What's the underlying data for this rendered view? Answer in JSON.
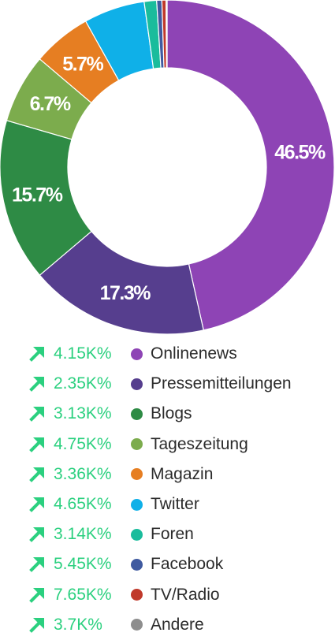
{
  "chart_data": {
    "type": "pie",
    "donut": true,
    "show_labels_min": 5,
    "title": "",
    "slices": [
      {
        "name": "Onlinenews",
        "value": 46.5,
        "label": "46.5%",
        "color": "#8e44b5",
        "trend": "4.15K%"
      },
      {
        "name": "Pressemitteilungen",
        "value": 17.3,
        "label": "17.3%",
        "color": "#563e8e",
        "trend": "2.35K%"
      },
      {
        "name": "Blogs",
        "value": 15.7,
        "label": "15.7%",
        "color": "#2e8b45",
        "trend": "3.13K%"
      },
      {
        "name": "Tageszeitung",
        "value": 6.7,
        "label": "6.7%",
        "color": "#7cac4d",
        "trend": "4.75K%"
      },
      {
        "name": "Magazin",
        "value": 5.7,
        "label": "5.7%",
        "color": "#e67e22",
        "trend": "3.36K%"
      },
      {
        "name": "Twitter",
        "value": 5.9,
        "label": "",
        "color": "#0fb0e8",
        "trend": "4.65K%"
      },
      {
        "name": "Foren",
        "value": 1.2,
        "label": "",
        "color": "#1abc9c",
        "trend": "3.14K%"
      },
      {
        "name": "Facebook",
        "value": 0.5,
        "label": "",
        "color": "#3f5aa0",
        "trend": "5.45K%"
      },
      {
        "name": "TV/Radio",
        "value": 0.4,
        "label": "",
        "color": "#c0392b",
        "trend": "7.65K%"
      },
      {
        "name": "Andere",
        "value": 0.1,
        "label": "",
        "color": "#8e8e8e",
        "trend": "3.7K%"
      }
    ]
  },
  "colors": {
    "trend": "#2bd07f",
    "legend_text": "#2b2b2b"
  },
  "icons": {
    "trend": "arrow-up-right-icon"
  }
}
